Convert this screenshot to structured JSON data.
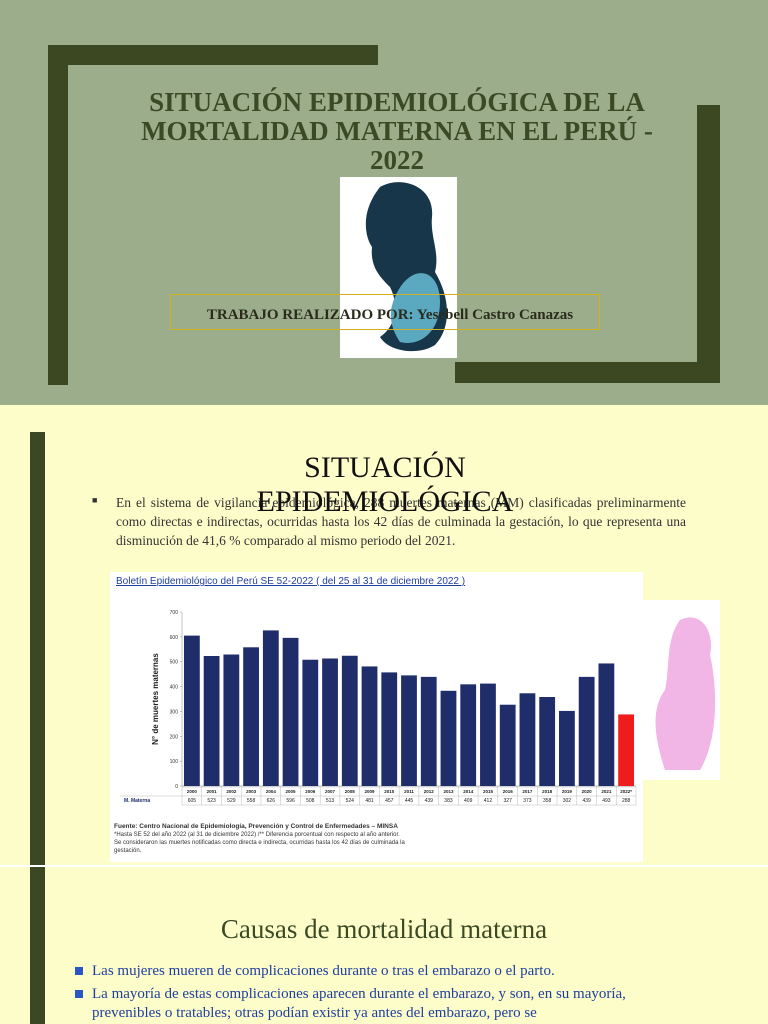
{
  "slides": [
    {
      "title": "SITUACIÓN EPIDEMIOLÓGICA DE LA MORTALIDAD MATERNA EN EL PERÚ - 2022",
      "author": "TRABAJO REALIZADO POR: Yesebell Castro Canazas"
    },
    {
      "title": "SITUACIÓN EPIDEMIOLÓGICA",
      "paragraph": "En el sistema de vigilancia epidemiológica, 288 muertes maternas (MM) clasificadas preliminarmente como directas e indirectas, ocurridas hasta los 42 días de culminada la gestación, lo que representa una disminución de 41,6 % comparado al mismo periodo del 2021.",
      "chart": {
        "type": "bar",
        "title": "Boletín Epidemiológico del Perú SE 52-2022  ( del 25 al 31 de diciembre 2022 )",
        "y_label": "N° de muertes maternas",
        "categories": [
          "2000",
          "2001",
          "2002",
          "2003",
          "2004",
          "2005",
          "2006",
          "2007",
          "2008",
          "2009",
          "2010",
          "2011",
          "2012",
          "2013",
          "2014",
          "2015",
          "2016",
          "2017",
          "2018",
          "2019",
          "2020",
          "2021",
          "2022*"
        ],
        "series": [
          {
            "name": "M. Materna",
            "colors": [
              "#1f2d6b",
              "#1f2d6b",
              "#1f2d6b",
              "#1f2d6b",
              "#1f2d6b",
              "#1f2d6b",
              "#1f2d6b",
              "#1f2d6b",
              "#1f2d6b",
              "#1f2d6b",
              "#1f2d6b",
              "#1f2d6b",
              "#1f2d6b",
              "#1f2d6b",
              "#1f2d6b",
              "#1f2d6b",
              "#1f2d6b",
              "#1f2d6b",
              "#1f2d6b",
              "#1f2d6b",
              "#1f2d6b",
              "#1f2d6b",
              "#ee1c1c"
            ],
            "values": [
              605,
              523,
              529,
              558,
              626,
              596,
              508,
              513,
              524,
              481,
              457,
              445,
              439,
              383,
              409,
              412,
              327,
              373,
              358,
              302,
              439,
              493,
              288
            ]
          }
        ],
        "ylim": [
          0,
          700
        ],
        "yticks": [
          0,
          100,
          200,
          300,
          400,
          500,
          600,
          700
        ],
        "notes": [
          "Fuente: Centro Nacional de Epidemiología, Prevención y Control de Enfermedades – MINSA",
          "*Hasta SE 52 del año 2022 (al 31 de diciembre 2022) /** Diferencia porcentual con respecto al año anterior.",
          "Se consideraron las muertes notificadas como directa e indirecta, ocurridas hasta los 42 días de culminada la",
          "gestación."
        ]
      }
    },
    {
      "title": "Causas de mortalidad materna",
      "bullets": [
        "Las mujeres mueren de complicaciones durante o tras el embarazo o el parto.",
        "La mayoría de estas complicaciones aparecen durante el embarazo, y son, en su mayoría, prevenibles o tratables; otras podían existir ya antes del embarazo, pero se"
      ]
    }
  ]
}
